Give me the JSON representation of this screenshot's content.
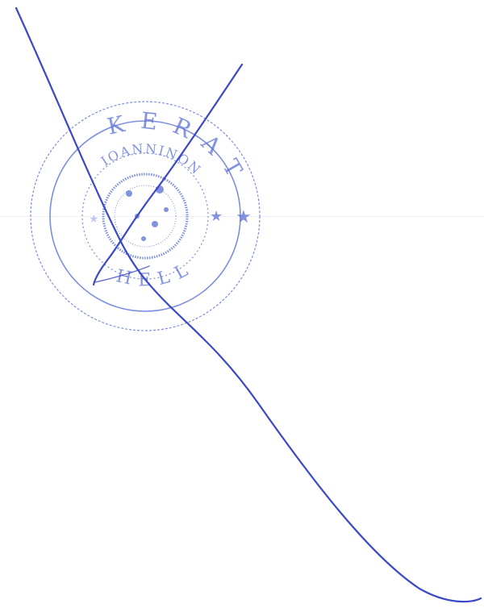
{
  "colors": {
    "stamp_ink": "#5a6fd6",
    "signature_ink": "#3a49c6",
    "paper": "#ffffff"
  },
  "stamp": {
    "text_outer": "KERAT",
    "text_inner": "IOANNINON",
    "text_bottom": "HELL",
    "icon": "star-icon"
  }
}
